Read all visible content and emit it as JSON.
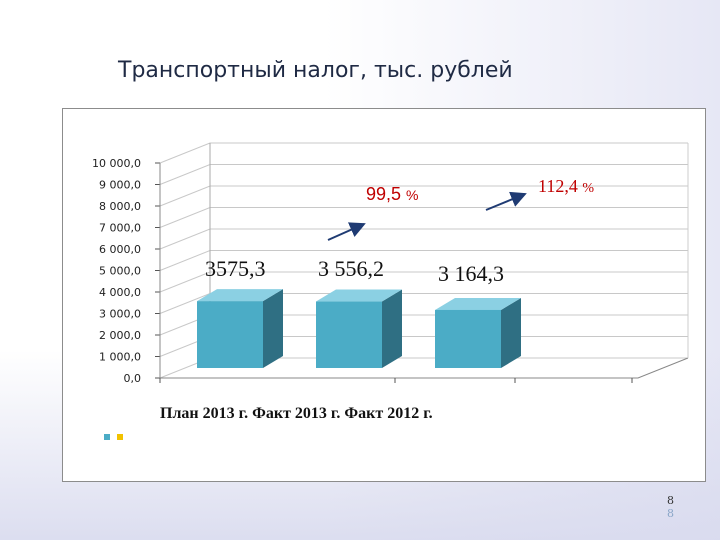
{
  "slide": {
    "title": "Транспортный налог, тыс. рублей",
    "page_number": "8",
    "page_number_shadow": "8"
  },
  "colors": {
    "bar_front": "#4bacc6",
    "bar_side": "#2f6f83",
    "bar_top": "#8bd0e3",
    "grid": "#c8c8c8",
    "growth_label": "#c00000",
    "arrow": "#1f3b73",
    "legend_1": "#4bacc6",
    "legend_2": "#f2c200"
  },
  "chart_data": {
    "type": "bar",
    "title": "Транспортный налог, тыс. рублей",
    "categories": [
      "План 2013 г.",
      "Факт 2013 г.",
      "Факт 2012 г."
    ],
    "category_axis_text": "План 2013 г.  Факт 2013 г.  Факт 2012 г.",
    "values": [
      3575.3,
      3556.2,
      3164.3
    ],
    "data_labels": [
      "3575,3",
      "3 556,2",
      "3 164,3"
    ],
    "ylim": [
      0,
      10000
    ],
    "y_ticks": [
      0,
      1000,
      2000,
      3000,
      4000,
      5000,
      6000,
      7000,
      8000,
      9000,
      10000
    ],
    "y_tick_labels": [
      "0,0",
      "1 000,0",
      "2 000,0",
      "3 000,0",
      "4 000,0",
      "5 000,0",
      "6 000,0",
      "7 000,0",
      "8 000,0",
      "9 000,0",
      "10 000,0"
    ],
    "grid": true,
    "three_d": true,
    "annotations": [
      {
        "text": "99,5",
        "unit": "%"
      },
      {
        "text": "112,4",
        "unit": "%"
      }
    ]
  }
}
